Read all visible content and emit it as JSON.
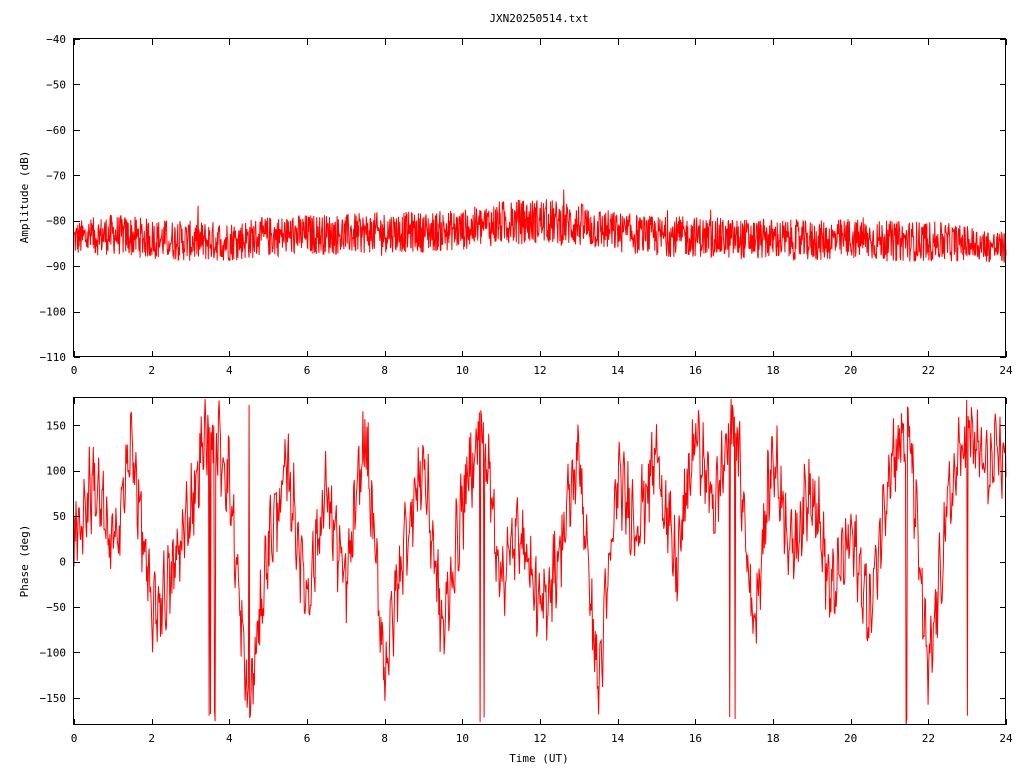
{
  "title": "JXN20250514.txt",
  "colors": {
    "series": "#ff0000",
    "axes": "#000000",
    "background": "#ffffff"
  },
  "chart_data": [
    {
      "type": "line",
      "title": "JXN20250514.txt",
      "xlabel": "",
      "ylabel": "Amplitude (dB)",
      "xlim": [
        0,
        24
      ],
      "ylim": [
        -110,
        -40
      ],
      "xticks": [
        0,
        2,
        4,
        6,
        8,
        10,
        12,
        14,
        16,
        18,
        20,
        22,
        24
      ],
      "yticks": [
        -40,
        -50,
        -60,
        -70,
        -80,
        -90,
        -100,
        -110
      ],
      "xtick_labels": [
        "0",
        "2",
        "4",
        "6",
        "8",
        "10",
        "12",
        "14",
        "16",
        "18",
        "20",
        "22",
        "24"
      ],
      "ytick_labels": [
        "-40",
        "-50",
        "-60",
        "-70",
        "-80",
        "-90",
        "-100",
        "-110"
      ],
      "grid": false,
      "series": [
        {
          "color": "#ff0000",
          "x": [
            0,
            1,
            2,
            3,
            4,
            5,
            6,
            7,
            8,
            9,
            10,
            11,
            12,
            13,
            14,
            15,
            16,
            17,
            18,
            19,
            20,
            21,
            22,
            23,
            24
          ],
          "y": [
            -84,
            -83,
            -84,
            -84.5,
            -84.5,
            -83.5,
            -83,
            -83,
            -82.5,
            -82.5,
            -82,
            -80.5,
            -80,
            -81,
            -82.5,
            -83.5,
            -83.5,
            -84,
            -84,
            -84.5,
            -84,
            -84.5,
            -84.5,
            -85,
            -86
          ],
          "spread": [
            4,
            4.5,
            4.5,
            4.5,
            4.5,
            4.5,
            4.5,
            4.5,
            4.5,
            4.5,
            4.5,
            5,
            5,
            5,
            4.5,
            4.5,
            4.5,
            4.5,
            4.5,
            4.5,
            4.5,
            4.5,
            4.5,
            4,
            3.5
          ]
        }
      ]
    },
    {
      "type": "line",
      "title": "",
      "xlabel": "Time (UT)",
      "ylabel": "Phase (deg)",
      "xlim": [
        0,
        24
      ],
      "ylim": [
        -180,
        180
      ],
      "xticks": [
        0,
        2,
        4,
        6,
        8,
        10,
        12,
        14,
        16,
        18,
        20,
        22,
        24
      ],
      "yticks": [
        150,
        100,
        50,
        0,
        -50,
        -100,
        -150
      ],
      "xtick_labels": [
        "0",
        "2",
        "4",
        "6",
        "8",
        "10",
        "12",
        "14",
        "16",
        "18",
        "20",
        "22",
        "24"
      ],
      "ytick_labels": [
        "150",
        "100",
        "50",
        "0",
        "-50",
        "-100",
        "-150"
      ],
      "grid": false,
      "wrapped": true,
      "series": [
        {
          "color": "#ff0000",
          "x": [
            0,
            0.5,
            1,
            1.5,
            2,
            2.5,
            3,
            3.5,
            4,
            4.5,
            5,
            5.5,
            6,
            6.5,
            7,
            7.5,
            8,
            8.5,
            9,
            9.5,
            10,
            10.5,
            11,
            11.5,
            12,
            12.5,
            13,
            13.5,
            14,
            14.5,
            15,
            15.5,
            16,
            16.5,
            17,
            17.5,
            18,
            18.5,
            19,
            19.5,
            20,
            20.5,
            21,
            21.5,
            22,
            22.5,
            23,
            23.5,
            24
          ],
          "y": [
            20,
            90,
            10,
            130,
            -60,
            -20,
            60,
            160,
            90,
            -170,
            20,
            100,
            -40,
            80,
            -30,
            140,
            -120,
            20,
            110,
            -80,
            60,
            160,
            -20,
            40,
            -60,
            10,
            120,
            -140,
            90,
            40,
            120,
            -10,
            140,
            60,
            170,
            -70,
            120,
            10,
            90,
            -40,
            30,
            -60,
            110,
            150,
            -130,
            60,
            150,
            100,
            120
          ]
        }
      ]
    }
  ]
}
